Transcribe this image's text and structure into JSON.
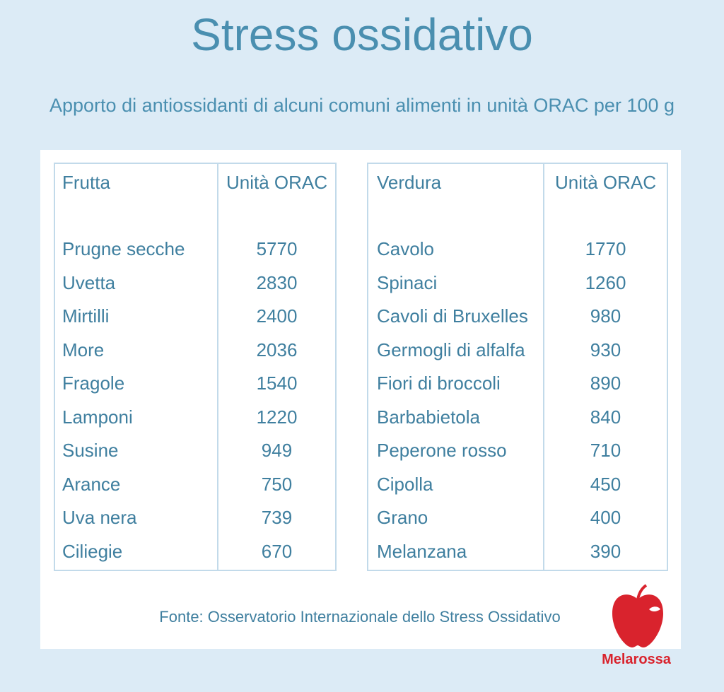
{
  "header": {
    "title": "Stress ossidativo",
    "subtitle": "Apporto di antiossidanti di alcuni comuni alimenti in unità ORAC per 100 g"
  },
  "tables": [
    {
      "headers": [
        "Frutta",
        "Unità ORAC"
      ],
      "rows": [
        [
          "Prugne secche",
          5770
        ],
        [
          "Uvetta",
          2830
        ],
        [
          "Mirtilli",
          2400
        ],
        [
          "More",
          2036
        ],
        [
          "Fragole",
          1540
        ],
        [
          "Lamponi",
          1220
        ],
        [
          "Susine",
          949
        ],
        [
          "Arance",
          750
        ],
        [
          "Uva nera",
          739
        ],
        [
          "Ciliegie",
          670
        ]
      ]
    },
    {
      "headers": [
        "Verdura",
        "Unità ORAC"
      ],
      "rows": [
        [
          "Cavolo",
          1770
        ],
        [
          "Spinaci",
          1260
        ],
        [
          "Cavoli di Bruxelles",
          980
        ],
        [
          "Germogli di alfalfa",
          930
        ],
        [
          "Fiori di broccoli",
          890
        ],
        [
          "Barbabietola",
          840
        ],
        [
          "Peperone rosso",
          710
        ],
        [
          "Cipolla",
          450
        ],
        [
          "Grano",
          400
        ],
        [
          "Melanzana",
          390
        ]
      ]
    }
  ],
  "footer": {
    "source": "Fonte: Osservatorio Internazionale dello Stress Ossidativo",
    "logo": "Melarossa"
  }
}
